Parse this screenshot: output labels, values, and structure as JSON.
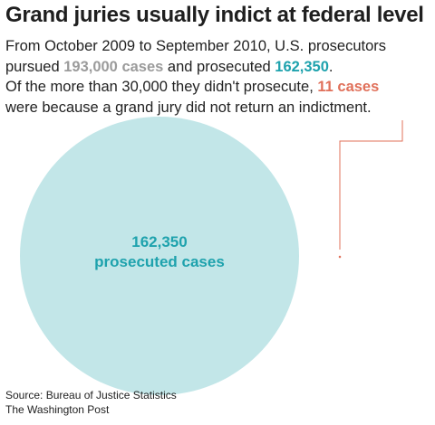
{
  "title": "Grand juries usually indict at federal level",
  "description": {
    "line1": "From October 2009 to September 2010, U.S. prosecutors",
    "line2_pre": "pursued ",
    "line2_hl1": "193,000 cases",
    "line2_mid": " and prosecuted ",
    "line2_hl2": "162,350",
    "line2_post": ".",
    "line3_pre": "Of the more than 30,000 they didn't prosecute, ",
    "line3_hl": "11 cases",
    "line4": "were because a grand jury did not return an indictment."
  },
  "chart_data": {
    "type": "bubble",
    "title": "Grand juries usually indict at federal level",
    "bubbles": [
      {
        "label_value": "162,350",
        "label_text": "prosecuted cases",
        "value": 162350,
        "color": "#c2e6e8",
        "label_color": "#1ea2ad"
      },
      {
        "label_value": "11",
        "label_text": "cases",
        "value": 11,
        "color": "#e0705a"
      }
    ],
    "context": {
      "pursued": 193000,
      "not_prosecuted_min": 30000
    }
  },
  "colors": {
    "teal": "#1ea2ad",
    "teal_light": "#c2e6e8",
    "grey": "#9b9b9b",
    "red": "#e0705a"
  },
  "source": {
    "line1": "Source: Bureau of Justice Statistics",
    "line2": "The Washington Post"
  }
}
